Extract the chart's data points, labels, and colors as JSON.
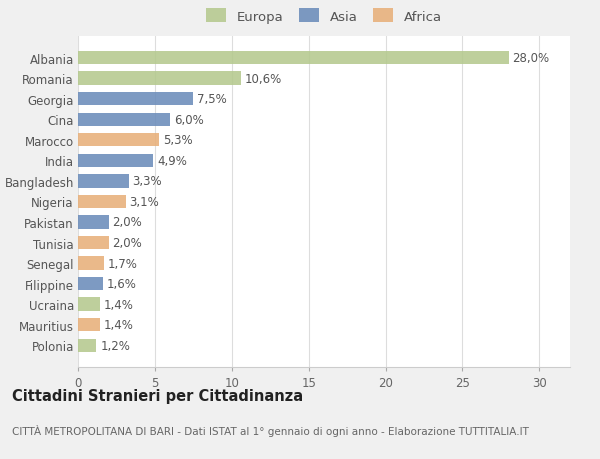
{
  "categories": [
    "Albania",
    "Romania",
    "Georgia",
    "Cina",
    "Marocco",
    "India",
    "Bangladesh",
    "Nigeria",
    "Pakistan",
    "Tunisia",
    "Senegal",
    "Filippine",
    "Ucraina",
    "Mauritius",
    "Polonia"
  ],
  "values": [
    28.0,
    10.6,
    7.5,
    6.0,
    5.3,
    4.9,
    3.3,
    3.1,
    2.0,
    2.0,
    1.7,
    1.6,
    1.4,
    1.4,
    1.2
  ],
  "continents": [
    "Europa",
    "Europa",
    "Asia",
    "Asia",
    "Africa",
    "Asia",
    "Asia",
    "Africa",
    "Asia",
    "Africa",
    "Africa",
    "Asia",
    "Europa",
    "Africa",
    "Europa"
  ],
  "colors": {
    "Europa": "#b5c98e",
    "Asia": "#6b8cba",
    "Africa": "#e8b07a"
  },
  "xlim": [
    0,
    32
  ],
  "xticks": [
    0,
    5,
    10,
    15,
    20,
    25,
    30
  ],
  "title": "Cittadini Stranieri per Cittadinanza",
  "subtitle": "CITTÀ METROPOLITANA DI BARI - Dati ISTAT al 1° gennaio di ogni anno - Elaborazione TUTTITALIA.IT",
  "background_color": "#f0f0f0",
  "plot_bg_color": "#ffffff",
  "grid_color": "#dddddd",
  "label_fontsize": 8.5,
  "value_fontsize": 8.5,
  "title_fontsize": 10.5,
  "subtitle_fontsize": 7.5,
  "legend_fontsize": 9.5
}
